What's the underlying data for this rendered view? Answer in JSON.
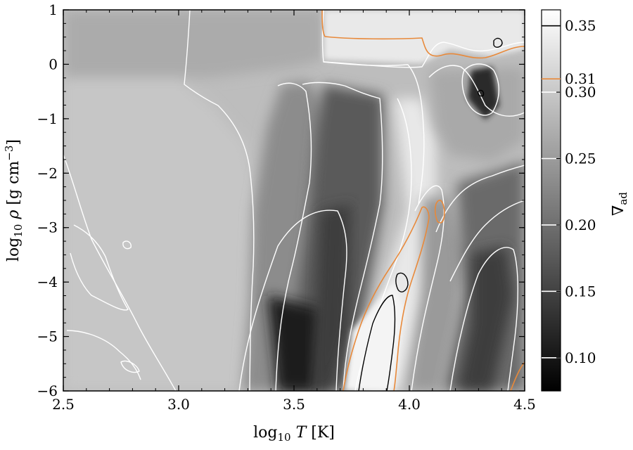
{
  "chart_data": {
    "type": "heatmap",
    "xlabel": "log10 T [K]",
    "ylabel": "log10 ρ [g cm−3]",
    "colorbar_label": "∇ad",
    "colormap": "gray",
    "xlim": [
      2.5,
      4.5
    ],
    "ylim": [
      -6,
      1
    ],
    "clim": [
      0.075,
      0.362
    ],
    "x_ticks": [
      2.5,
      3.0,
      3.5,
      4.0,
      4.5
    ],
    "x_tick_labels": [
      "2.5",
      "3.0",
      "3.5",
      "4.0",
      "4.5"
    ],
    "y_ticks": [
      -6,
      -5,
      -4,
      -3,
      -2,
      -1,
      0,
      1
    ],
    "y_tick_labels": [
      "−6",
      "−5",
      "−4",
      "−3",
      "−2",
      "−1",
      "0",
      "1"
    ],
    "colorbar_ticks": [
      0.1,
      0.15,
      0.2,
      0.25,
      0.3,
      0.35
    ],
    "colorbar_tick_labels": [
      "0.10",
      "0.15",
      "0.20",
      "0.25",
      "0.30",
      "0.35"
    ],
    "colorbar_contour_lines": [
      {
        "value": 0.1,
        "color": "#ffffff"
      },
      {
        "value": 0.15,
        "color": "#ffffff"
      },
      {
        "value": 0.2,
        "color": "#ffffff"
      },
      {
        "value": 0.25,
        "color": "#ffffff"
      },
      {
        "value": 0.3,
        "color": "#ffffff"
      },
      {
        "value": 0.31,
        "color": "#e8893a",
        "label": "0.31"
      },
      {
        "value": 0.35,
        "color": "#000000"
      }
    ],
    "grid": false
  },
  "colors": {
    "orange_contour": "#e8893a",
    "white_contour": "#ffffff",
    "black_contour": "#000000"
  }
}
